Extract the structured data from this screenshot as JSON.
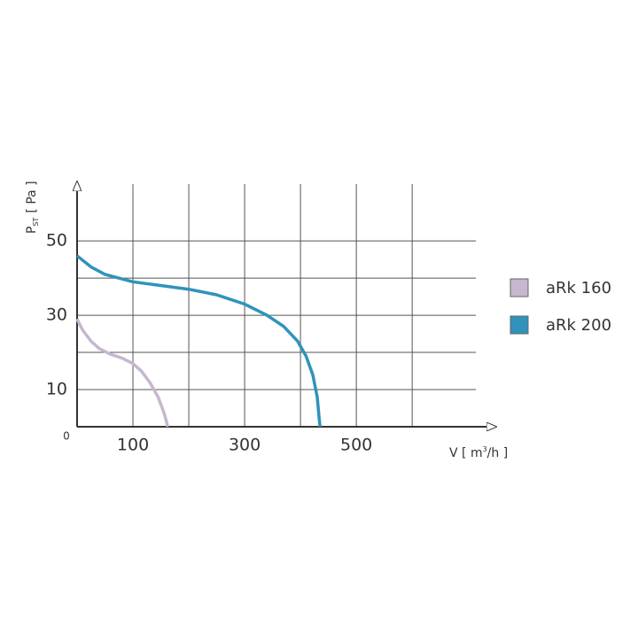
{
  "chart_data": {
    "type": "line",
    "y_label": {
      "main": "P",
      "sub": "ST",
      "unit": "[ Pa ]"
    },
    "x_label": {
      "main": "V [ m",
      "sup": "3",
      "unit": "/h ]"
    },
    "xlim": [
      0,
      714
    ],
    "ylim": [
      0,
      66
    ],
    "xticks": [
      0,
      100,
      300,
      500
    ],
    "yticks": [
      10,
      30,
      50
    ],
    "xgrid": [
      100,
      200,
      300,
      400,
      500,
      600
    ],
    "ygrid": [
      10,
      20,
      30,
      40,
      50
    ],
    "grid": true,
    "legend": "right",
    "series": [
      {
        "name": "aRk 160",
        "color": "#c6b7cf",
        "x": [
          0,
          10,
          25,
          40,
          60,
          80,
          100,
          115,
          130,
          145,
          155,
          160,
          162
        ],
        "values": [
          29,
          26,
          23,
          21,
          19.5,
          18.5,
          17,
          15,
          12,
          8,
          4,
          1.5,
          0
        ]
      },
      {
        "name": "aRk 200",
        "color": "#2f93bb",
        "x": [
          0,
          25,
          50,
          100,
          150,
          200,
          250,
          300,
          340,
          370,
          395,
          410,
          422,
          430,
          433,
          435
        ],
        "values": [
          46,
          43,
          41,
          39,
          38,
          37,
          35.5,
          33,
          30,
          27,
          23,
          19,
          14,
          8,
          3,
          0
        ]
      }
    ]
  }
}
